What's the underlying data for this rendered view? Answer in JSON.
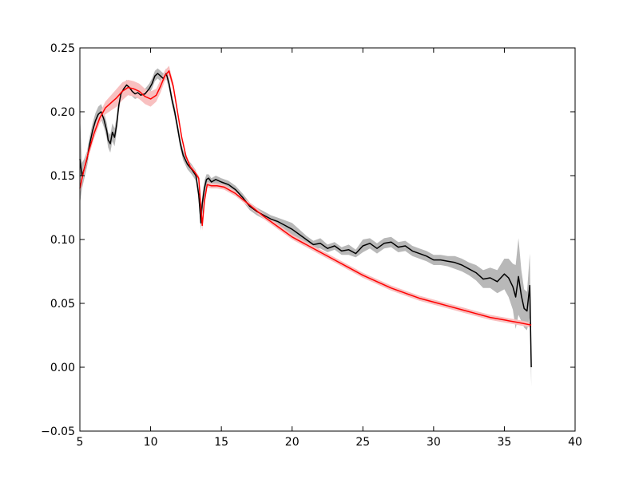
{
  "chart_data": {
    "type": "line",
    "title": "",
    "xlabel": "",
    "ylabel": "",
    "xlim": [
      5,
      40
    ],
    "ylim": [
      -0.05,
      0.25
    ],
    "grid": false,
    "legend": "none",
    "x_ticks": [
      {
        "value": 5,
        "label": "5"
      },
      {
        "value": 10,
        "label": "10"
      },
      {
        "value": 15,
        "label": "15"
      },
      {
        "value": 20,
        "label": "20"
      },
      {
        "value": 25,
        "label": "25"
      },
      {
        "value": 30,
        "label": "30"
      },
      {
        "value": 35,
        "label": "35"
      },
      {
        "value": 40,
        "label": "40"
      }
    ],
    "y_ticks": [
      {
        "value": -0.05,
        "label": "−0.05"
      },
      {
        "value": 0.0,
        "label": "0.00"
      },
      {
        "value": 0.05,
        "label": "0.05"
      },
      {
        "value": 0.1,
        "label": "0.10"
      },
      {
        "value": 0.15,
        "label": "0.15"
      },
      {
        "value": 0.2,
        "label": "0.20"
      },
      {
        "value": 0.25,
        "label": "0.25"
      }
    ],
    "series": [
      {
        "color": "#000000",
        "band_color": "#b8b8b8",
        "x": [
          5.0,
          5.15,
          5.3,
          5.5,
          5.7,
          5.9,
          6.1,
          6.3,
          6.5,
          6.7,
          6.9,
          7.0,
          7.15,
          7.3,
          7.45,
          7.6,
          7.75,
          7.9,
          8.1,
          8.3,
          8.5,
          8.7,
          8.9,
          9.1,
          9.3,
          9.6,
          9.9,
          10.1,
          10.3,
          10.5,
          10.7,
          10.9,
          11.1,
          11.3,
          11.5,
          11.7,
          11.9,
          12.1,
          12.3,
          12.6,
          12.9,
          13.2,
          13.4,
          13.55,
          13.65,
          13.8,
          13.95,
          14.1,
          14.3,
          14.6,
          15.0,
          15.5,
          16.0,
          16.5,
          17.0,
          17.5,
          18.0,
          18.5,
          19.0,
          19.5,
          20.0,
          20.5,
          21.0,
          21.5,
          22.0,
          22.5,
          23.0,
          23.5,
          24.0,
          24.5,
          25.0,
          25.5,
          26.0,
          26.5,
          27.0,
          27.5,
          28.0,
          28.5,
          29.0,
          29.5,
          30.0,
          30.5,
          31.0,
          31.5,
          32.0,
          32.5,
          33.0,
          33.5,
          34.0,
          34.5,
          35.0,
          35.3,
          35.6,
          35.8,
          36.0,
          36.2,
          36.4,
          36.6,
          36.8,
          36.9
        ],
        "y": [
          0.163,
          0.15,
          0.155,
          0.163,
          0.175,
          0.185,
          0.193,
          0.198,
          0.2,
          0.194,
          0.185,
          0.178,
          0.175,
          0.184,
          0.18,
          0.19,
          0.205,
          0.214,
          0.218,
          0.221,
          0.219,
          0.216,
          0.214,
          0.215,
          0.213,
          0.214,
          0.218,
          0.222,
          0.228,
          0.23,
          0.228,
          0.226,
          0.23,
          0.222,
          0.21,
          0.2,
          0.188,
          0.175,
          0.166,
          0.159,
          0.155,
          0.15,
          0.135,
          0.113,
          0.128,
          0.14,
          0.147,
          0.148,
          0.145,
          0.147,
          0.145,
          0.143,
          0.139,
          0.133,
          0.126,
          0.122,
          0.119,
          0.116,
          0.114,
          0.111,
          0.108,
          0.104,
          0.1,
          0.096,
          0.097,
          0.093,
          0.095,
          0.091,
          0.092,
          0.089,
          0.095,
          0.097,
          0.093,
          0.097,
          0.098,
          0.094,
          0.095,
          0.091,
          0.089,
          0.087,
          0.084,
          0.084,
          0.083,
          0.082,
          0.08,
          0.077,
          0.074,
          0.069,
          0.07,
          0.067,
          0.073,
          0.07,
          0.063,
          0.055,
          0.071,
          0.056,
          0.046,
          0.044,
          0.064,
          0.0
        ],
        "band": [
          0.035,
          0.01,
          0.008,
          0.006,
          0.006,
          0.006,
          0.006,
          0.006,
          0.006,
          0.006,
          0.006,
          0.006,
          0.007,
          0.007,
          0.007,
          0.006,
          0.005,
          0.004,
          0.004,
          0.004,
          0.004,
          0.004,
          0.004,
          0.004,
          0.004,
          0.004,
          0.004,
          0.004,
          0.004,
          0.004,
          0.004,
          0.004,
          0.004,
          0.004,
          0.004,
          0.004,
          0.004,
          0.004,
          0.004,
          0.004,
          0.004,
          0.004,
          0.005,
          0.006,
          0.006,
          0.006,
          0.004,
          0.003,
          0.003,
          0.003,
          0.003,
          0.003,
          0.003,
          0.003,
          0.003,
          0.003,
          0.003,
          0.003,
          0.003,
          0.004,
          0.005,
          0.004,
          0.003,
          0.003,
          0.004,
          0.003,
          0.003,
          0.003,
          0.004,
          0.003,
          0.005,
          0.004,
          0.004,
          0.004,
          0.004,
          0.004,
          0.004,
          0.004,
          0.004,
          0.004,
          0.004,
          0.004,
          0.004,
          0.005,
          0.005,
          0.005,
          0.006,
          0.007,
          0.008,
          0.009,
          0.012,
          0.015,
          0.018,
          0.025,
          0.03,
          0.02,
          0.015,
          0.015,
          0.025,
          0.015
        ]
      },
      {
        "color": "#ff0000",
        "band_color": "#f8c0c0",
        "x": [
          5.0,
          5.3,
          5.6,
          6.0,
          6.4,
          6.8,
          7.2,
          7.6,
          8.0,
          8.4,
          8.8,
          9.2,
          9.6,
          10.0,
          10.4,
          10.7,
          11.0,
          11.3,
          11.6,
          11.9,
          12.2,
          12.5,
          12.8,
          13.1,
          13.4,
          13.55,
          13.65,
          13.8,
          14.0,
          14.3,
          14.7,
          15.2,
          16.0,
          17.0,
          18.0,
          19.0,
          20.0,
          21.0,
          22.0,
          23.0,
          24.0,
          25.0,
          26.0,
          27.0,
          28.0,
          29.0,
          30.0,
          31.0,
          32.0,
          33.0,
          34.0,
          35.0,
          36.0,
          36.9
        ],
        "y": [
          0.14,
          0.155,
          0.168,
          0.183,
          0.195,
          0.203,
          0.207,
          0.211,
          0.216,
          0.219,
          0.218,
          0.216,
          0.212,
          0.21,
          0.213,
          0.22,
          0.228,
          0.232,
          0.22,
          0.2,
          0.18,
          0.165,
          0.157,
          0.153,
          0.148,
          0.125,
          0.111,
          0.13,
          0.143,
          0.142,
          0.142,
          0.141,
          0.136,
          0.127,
          0.118,
          0.11,
          0.102,
          0.096,
          0.09,
          0.084,
          0.078,
          0.072,
          0.067,
          0.062,
          0.058,
          0.054,
          0.051,
          0.048,
          0.045,
          0.042,
          0.039,
          0.037,
          0.035,
          0.033
        ],
        "band": [
          0.004,
          0.004,
          0.004,
          0.004,
          0.004,
          0.005,
          0.006,
          0.007,
          0.007,
          0.006,
          0.006,
          0.006,
          0.006,
          0.006,
          0.005,
          0.005,
          0.004,
          0.004,
          0.003,
          0.002,
          0.002,
          0.002,
          0.002,
          0.002,
          0.002,
          0.004,
          0.004,
          0.003,
          0.002,
          0.002,
          0.002,
          0.002,
          0.002,
          0.002,
          0.002,
          0.002,
          0.002,
          0.002,
          0.002,
          0.002,
          0.002,
          0.002,
          0.002,
          0.002,
          0.002,
          0.002,
          0.002,
          0.002,
          0.002,
          0.002,
          0.002,
          0.002,
          0.002,
          0.002
        ]
      }
    ]
  }
}
